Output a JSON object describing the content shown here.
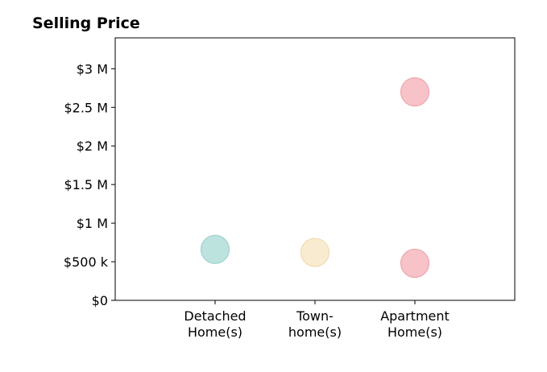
{
  "chart_data": {
    "type": "scatter",
    "title": "Selling Price",
    "xlabel": "",
    "ylabel": "",
    "categories": [
      [
        "Detached",
        "Home(s)"
      ],
      [
        "Town-",
        "home(s)"
      ],
      [
        "Apartment",
        "Home(s)"
      ]
    ],
    "ylim": [
      0,
      3400000
    ],
    "yticks": [
      {
        "value": 0,
        "label": "$0"
      },
      {
        "value": 500000,
        "label": "$500 k"
      },
      {
        "value": 1000000,
        "label": "$1 M"
      },
      {
        "value": 1500000,
        "label": "$1.5 M"
      },
      {
        "value": 2000000,
        "label": "$2 M"
      },
      {
        "value": 2500000,
        "label": "$2.5 M"
      },
      {
        "value": 3000000,
        "label": "$3 M"
      }
    ],
    "points": [
      {
        "category": 0,
        "y": 660000,
        "color": "#bde3df",
        "stroke": "#9fd2cd"
      },
      {
        "category": 1,
        "y": 620000,
        "color": "#f8ebcf",
        "stroke": "#efdcb4"
      },
      {
        "category": 2,
        "y": 2700000,
        "color": "#f7c3c8",
        "stroke": "#eea7ad"
      },
      {
        "category": 2,
        "y": 480000,
        "color": "#f7c3c8",
        "stroke": "#eea7ad"
      }
    ],
    "grid": false,
    "legend": "none"
  }
}
